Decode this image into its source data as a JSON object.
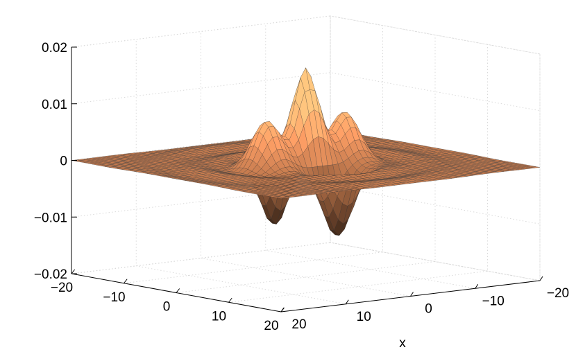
{
  "chart_data": {
    "type": "surface",
    "title": "",
    "xlabel": "x",
    "ylabel": "",
    "zlabel": "",
    "xlim": [
      -20,
      20
    ],
    "ylim": [
      -20,
      20
    ],
    "zlim": [
      -0.02,
      0.02
    ],
    "grid": true,
    "colormap": "copper",
    "x_ticks": [
      "20",
      "10",
      "0",
      "−10",
      "−20"
    ],
    "y_ticks": [
      "−20",
      "−10",
      "0",
      "10",
      "20"
    ],
    "z_ticks": [
      "0.02",
      "0.01",
      "0",
      "−0.01",
      "−0.02"
    ],
    "x_tick_values": [
      20,
      10,
      0,
      -10,
      -20
    ],
    "y_tick_values": [
      -20,
      -10,
      0,
      10,
      20
    ],
    "z_tick_values": [
      0.02,
      0.01,
      0,
      -0.01,
      -0.02
    ],
    "grid_size": 51,
    "peaks": [
      {
        "x": 0,
        "y": 0,
        "z": 0.0117
      },
      {
        "x": 6,
        "y": 0,
        "z": 0.0072
      },
      {
        "x": -6,
        "y": 0,
        "z": 0.0072
      },
      {
        "x": 0,
        "y": 6,
        "z": -0.0105
      },
      {
        "x": 0,
        "y": -6,
        "z": -0.0105
      }
    ],
    "color_range": {
      "low": "#000000",
      "high": "#ffc77f"
    }
  }
}
